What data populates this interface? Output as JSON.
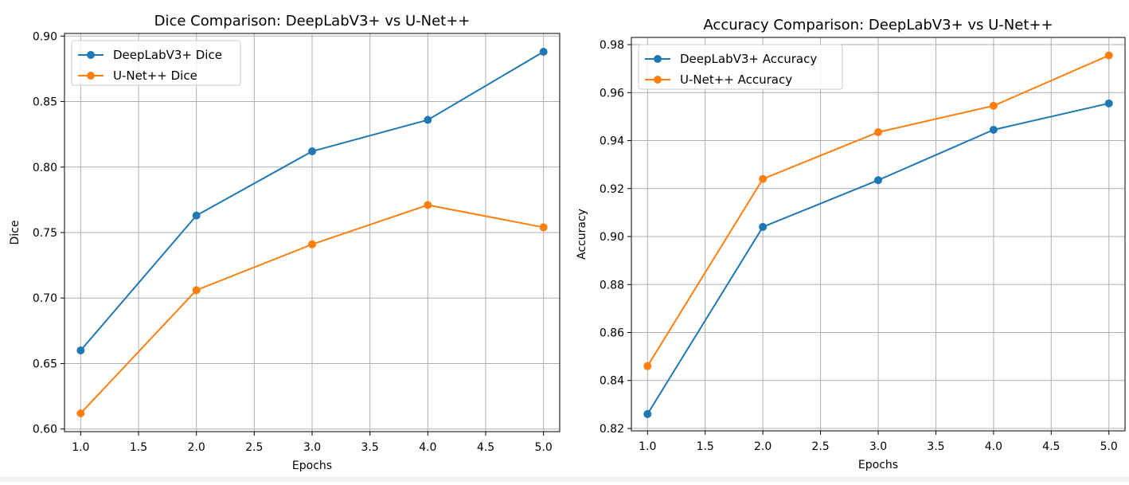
{
  "chart_data": [
    {
      "type": "line",
      "title": "Dice Comparison: DeepLabV3+ vs U-Net++",
      "xlabel": "Epochs",
      "ylabel": "Dice",
      "x": [
        1,
        2,
        3,
        4,
        5
      ],
      "xlim": [
        0.86,
        5.14
      ],
      "ylim": [
        0.598,
        0.902
      ],
      "xticks": [
        "1.0",
        "1.5",
        "2.0",
        "2.5",
        "3.0",
        "3.5",
        "4.0",
        "4.5",
        "5.0"
      ],
      "xtick_values": [
        1.0,
        1.5,
        2.0,
        2.5,
        3.0,
        3.5,
        4.0,
        4.5,
        5.0
      ],
      "yticks": [
        "0.60",
        "0.65",
        "0.70",
        "0.75",
        "0.80",
        "0.85",
        "0.90"
      ],
      "ytick_values": [
        0.6,
        0.65,
        0.7,
        0.75,
        0.8,
        0.85,
        0.9
      ],
      "grid": true,
      "legend_position": "upper-left",
      "series": [
        {
          "name": "DeepLabV3+ Dice",
          "color": "#1f77b4",
          "values": [
            0.66,
            0.763,
            0.812,
            0.836,
            0.888
          ]
        },
        {
          "name": "U-Net++ Dice",
          "color": "#ff7f0e",
          "values": [
            0.612,
            0.706,
            0.741,
            0.771,
            0.754
          ]
        }
      ]
    },
    {
      "type": "line",
      "title": "Accuracy Comparison: DeepLabV3+ vs U-Net++",
      "xlabel": "Epochs",
      "ylabel": "Accuracy",
      "x": [
        1,
        2,
        3,
        4,
        5
      ],
      "xlim": [
        0.86,
        5.14
      ],
      "ylim": [
        0.819,
        0.983
      ],
      "xticks": [
        "1.0",
        "1.5",
        "2.0",
        "2.5",
        "3.0",
        "3.5",
        "4.0",
        "4.5",
        "5.0"
      ],
      "xtick_values": [
        1.0,
        1.5,
        2.0,
        2.5,
        3.0,
        3.5,
        4.0,
        4.5,
        5.0
      ],
      "yticks": [
        "0.82",
        "0.84",
        "0.86",
        "0.88",
        "0.90",
        "0.92",
        "0.94",
        "0.96",
        "0.98"
      ],
      "ytick_values": [
        0.82,
        0.84,
        0.86,
        0.88,
        0.9,
        0.92,
        0.94,
        0.96,
        0.98
      ],
      "grid": true,
      "legend_position": "upper-left",
      "series": [
        {
          "name": "DeepLabV3+ Accuracy",
          "color": "#1f77b4",
          "values": [
            0.826,
            0.904,
            0.9235,
            0.9445,
            0.9555
          ]
        },
        {
          "name": "U-Net++ Accuracy",
          "color": "#ff7f0e",
          "values": [
            0.846,
            0.924,
            0.9435,
            0.9545,
            0.9755
          ]
        }
      ]
    }
  ]
}
